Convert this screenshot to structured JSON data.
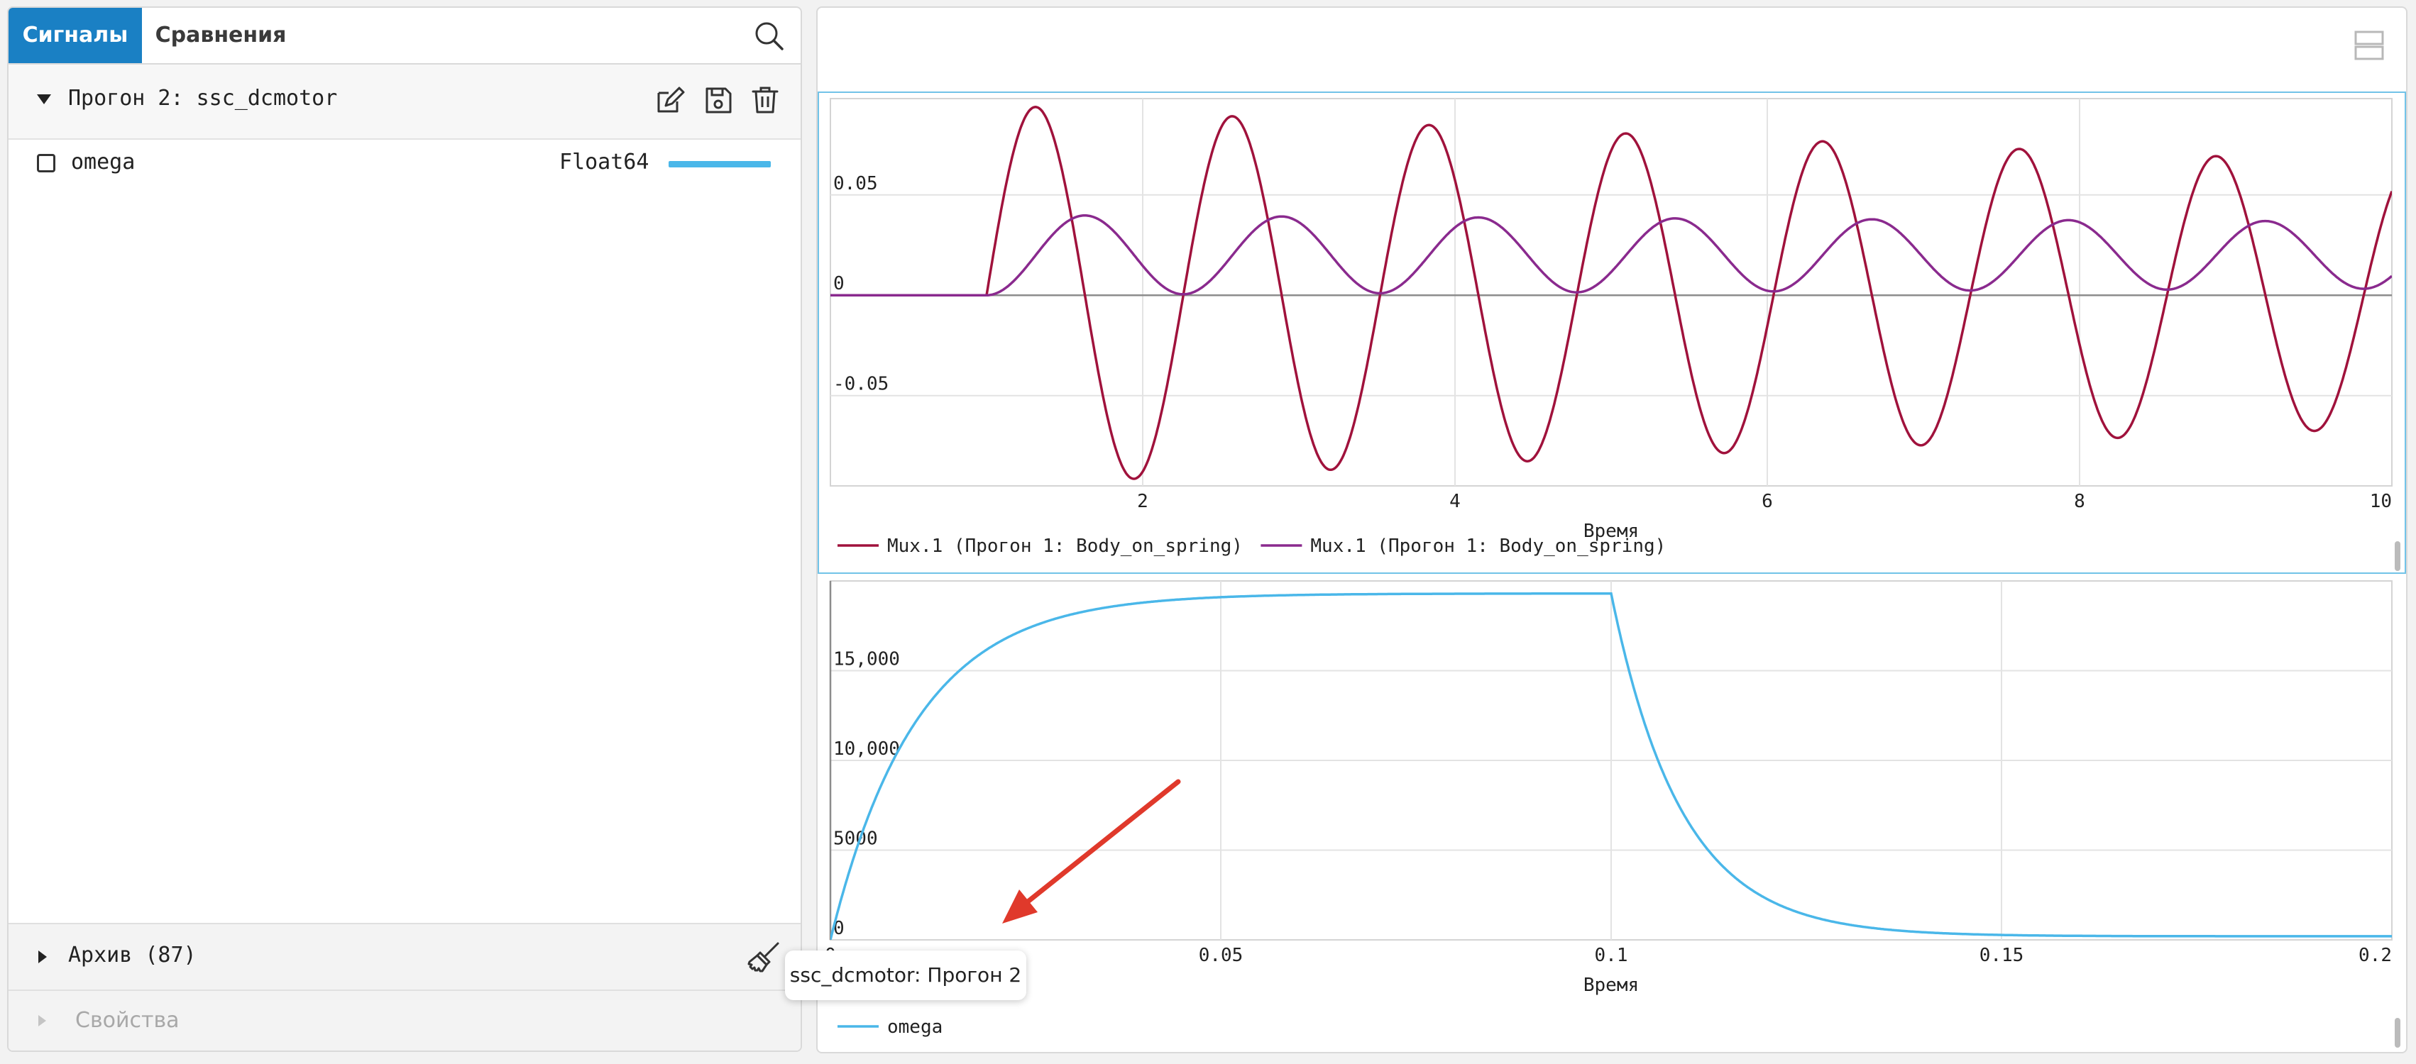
{
  "sidebar": {
    "tabs": [
      {
        "label": "Сигналы",
        "active": true
      },
      {
        "label": "Сравнения",
        "active": false
      }
    ],
    "run": {
      "title": "Прогон 2: ssc_dcmotor",
      "signals": [
        {
          "name": "omega",
          "type": "Float64",
          "color": "#4ab7e9",
          "checked": false
        }
      ]
    },
    "archive_label": "Архив (87)",
    "properties_label": "Свойства"
  },
  "tooltip": "ssc_dcmotor: Прогон 2",
  "chart_data": [
    {
      "type": "line",
      "title": "",
      "xlabel": "Время",
      "ylabel": "",
      "xlim": [
        0,
        10
      ],
      "ylim": [
        -0.095,
        0.098
      ],
      "x_ticks": [
        2,
        4,
        6,
        8,
        10
      ],
      "y_ticks": [
        -0.05,
        0,
        0.05
      ],
      "x_tick_labels": [
        "2",
        "4",
        "6",
        "8",
        "10"
      ],
      "y_tick_labels": [
        "-0.05",
        "0",
        "0.05"
      ],
      "grid": true,
      "legend_position": "bottom-left",
      "series": [
        {
          "name": "Mux.1 (Прогон 1: Body_on_spring)",
          "color": "#a0123c",
          "model": {
            "start": 1.0,
            "offset": 0,
            "amplitude": 0.095,
            "decay": 0.04,
            "period": 1.26
          }
        },
        {
          "name": "Mux.1 (Прогон 1: Body_on_spring)",
          "color": "#8a2a8e",
          "model": {
            "start": 1.0,
            "offset": 0.02,
            "amplitude": 0.02,
            "decay": 0.02,
            "period": 1.26
          }
        }
      ]
    },
    {
      "type": "line",
      "title": "",
      "xlabel": "Время",
      "ylabel": "",
      "xlim": [
        0,
        0.2
      ],
      "ylim": [
        0,
        20000
      ],
      "x_ticks": [
        0,
        0.05,
        0.1,
        0.15,
        0.2
      ],
      "y_ticks": [
        0,
        5000,
        10000,
        15000
      ],
      "x_tick_labels": [
        "0",
        "0.05",
        "0.1",
        "0.15",
        "0.2"
      ],
      "y_tick_labels": [
        "0",
        "5000",
        "10,000",
        "15,000"
      ],
      "grid": true,
      "legend_position": "bottom-left",
      "series": [
        {
          "name": "omega",
          "color": "#4ab7e9",
          "model": {
            "y_max": 19300,
            "rise_tau": 0.011,
            "fall_start": 0.1,
            "fall_tau": 0.009,
            "tail": 200
          }
        }
      ]
    }
  ]
}
